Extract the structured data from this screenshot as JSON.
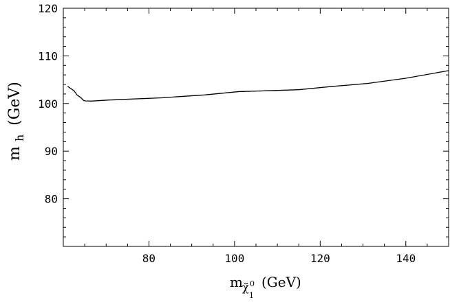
{
  "chart_data": {
    "type": "line",
    "title": "",
    "xlabel": {
      "main": "m",
      "sub_symbol": "χ̃",
      "sub_super": "0",
      "sub_sub": "1",
      "unit": "(GeV)"
    },
    "ylabel": {
      "main": "m",
      "sub": "h",
      "unit": "(GeV)"
    },
    "xlim": [
      60,
      150
    ],
    "ylim": [
      70,
      120
    ],
    "xticks": [
      80,
      100,
      120,
      140
    ],
    "yticks": [
      80,
      90,
      100,
      110,
      120
    ],
    "grid": false,
    "legend": "none",
    "line_color": "#000000",
    "series": [
      {
        "x": [
          61.0,
          62.5,
          63.2,
          64.0,
          64.8,
          65.2,
          66.5,
          70,
          75,
          83,
          93,
          101,
          105,
          115,
          123,
          131,
          140,
          150
        ],
        "y": [
          103.6,
          102.7,
          101.8,
          101.3,
          100.6,
          100.55,
          100.5,
          100.7,
          100.9,
          101.2,
          101.8,
          102.5,
          102.6,
          102.9,
          103.6,
          104.2,
          105.3,
          106.9
        ]
      }
    ]
  }
}
